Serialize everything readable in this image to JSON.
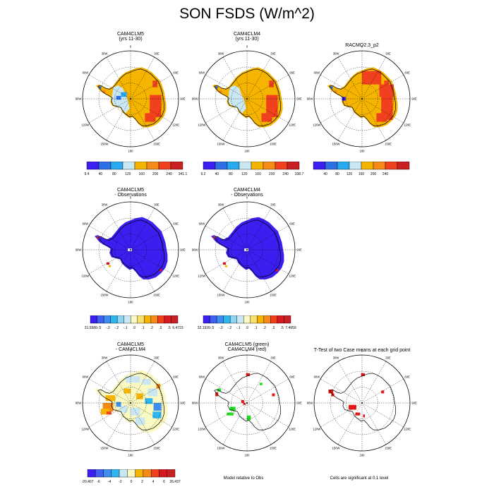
{
  "figure": {
    "title": "SON FSDS (W/m^2)",
    "captions": [
      "Model relative to Obs",
      "Cells are significant at 0.1 level"
    ]
  },
  "map_labels": {
    "lon": [
      "0",
      "30E",
      "60E",
      "90E",
      "120E",
      "150E",
      "180",
      "150W",
      "120W",
      "90W",
      "60W",
      "30W"
    ]
  },
  "palettes": {
    "abs": [
      "#3b1ef0",
      "#2f6fe6",
      "#29a9ee",
      "#c9e8f3",
      "#f5b400",
      "#f58a16",
      "#f0401e",
      "#c82023"
    ],
    "diff": [
      "#3b1ef0",
      "#4260f0",
      "#3d8ef0",
      "#2fb6f0",
      "#8cd4f2",
      "#c9e8f3",
      "#fbf9c2",
      "#f7df6a",
      "#f5b400",
      "#f58a16",
      "#f0401e",
      "#d81820",
      "#c82023"
    ],
    "diff3": [
      "#3b1ef0",
      "#4260f0",
      "#3d8ef0",
      "#2fb6f0",
      "#c9e8f3",
      "#fbf9c2",
      "#f5b400",
      "#f58a16",
      "#f0401e",
      "#d81820",
      "#c82023"
    ],
    "green": "#1fe01f",
    "red": "#e81818"
  },
  "chart_data": [
    {
      "type": "heatmap",
      "title": "CAM4CLM5",
      "subtitle": "(yrs 11-30)",
      "colorbar": {
        "labels": [
          "9.4",
          "40",
          "80",
          "120",
          "160",
          "200",
          "240",
          "341.1"
        ]
      }
    },
    {
      "type": "heatmap",
      "title": "CAM4CLM4",
      "subtitle": "(yrs 11-30)",
      "colorbar": {
        "labels": [
          "9.2",
          "40",
          "80",
          "120",
          "160",
          "200",
          "240",
          "338.7"
        ]
      }
    },
    {
      "type": "heatmap",
      "title": "RACMO2.3_p2",
      "subtitle": "",
      "colorbar": {
        "labels": [
          "40",
          "80",
          "120",
          "160",
          "200",
          "240"
        ]
      }
    },
    {
      "type": "heatmap",
      "title": "CAM4CLM5",
      "subtitle": "- Observations",
      "colorbar": {
        "labels": [
          "-31.5586",
          "-.5",
          "-.3",
          "-.2",
          "-.1",
          ".0",
          ".1",
          ".2",
          ".3",
          ".5",
          "6.4723"
        ]
      }
    },
    {
      "type": "heatmap",
      "title": "CAM4CLM4",
      "subtitle": "- Observations",
      "colorbar": {
        "labels": [
          "-32.1926",
          "-.5",
          "-.3",
          "-.2",
          "-.1",
          ".0",
          ".1",
          ".2",
          ".3",
          ".5",
          "7.4959"
        ]
      }
    },
    {
      "type": "heatmap",
      "title": "CAM4CLM5",
      "subtitle": "- CAM4CLM4",
      "colorbar": {
        "labels": [
          "-20.407",
          "-6",
          "-4",
          "-2",
          "0",
          "2",
          "4",
          "6",
          "26.437"
        ]
      }
    },
    {
      "type": "heatmap",
      "title": "CAM4CLM5 (green)",
      "subtitle": "CAM4CLM4 (red)",
      "colorbar": null
    },
    {
      "type": "heatmap",
      "title": "T-Test of two Case means at each grid point",
      "subtitle": "",
      "colorbar": null
    }
  ]
}
